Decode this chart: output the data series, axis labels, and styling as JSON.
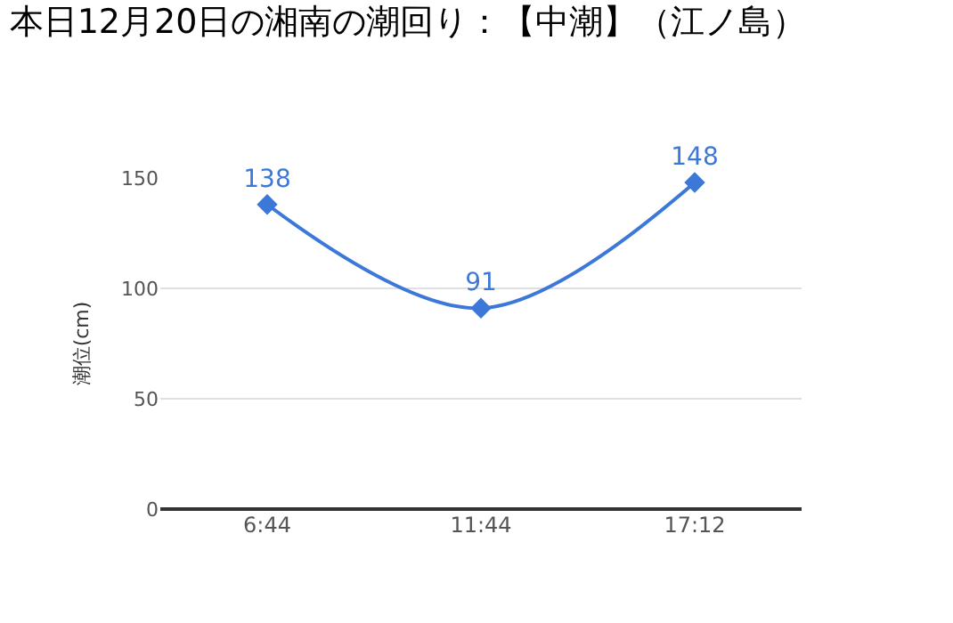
{
  "chart_data": {
    "type": "line",
    "title": "本日12月20日の湘南の潮回り：【中潮】（江ノ島）",
    "ylabel": "潮位(cm)",
    "categories": [
      "6:44",
      "11:44",
      "17:12"
    ],
    "series": [
      {
        "color": "#3c78d8",
        "values": [
          138,
          91,
          148
        ]
      }
    ],
    "ylim": [
      0,
      150
    ],
    "yticks": [
      0,
      50,
      100,
      150
    ],
    "grid": "y",
    "legend": false,
    "marker": "diamond",
    "line_style": "solid",
    "data_labels": true
  }
}
